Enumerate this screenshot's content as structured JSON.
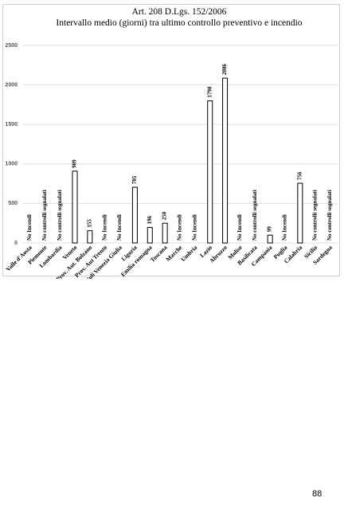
{
  "chart_data": {
    "type": "bar",
    "title": "Art. 208 D.Lgs. 152/2006",
    "subtitle": "Intervallo medio (giorni) tra ultimo controllo preventivo e incendio",
    "categories": [
      "Valle d'Aosta",
      "Piemonte",
      "Lombardia",
      "Veneto",
      "Prov. Aut. Bolzano",
      "Prov. Aut Trento",
      "Friuli Venezia Giulia",
      "Liguria",
      "Emilia romagna",
      "Toscana",
      "Marche",
      "Umbria",
      "Lazio",
      "Abruzzo",
      "Molise",
      "Basilicata",
      "Campania",
      "Puglia",
      "Calabria",
      "Sicilia",
      "Sardegna"
    ],
    "values": [
      null,
      null,
      null,
      909,
      155,
      null,
      null,
      705,
      196,
      250,
      null,
      null,
      1798,
      2086,
      null,
      null,
      99,
      null,
      756,
      null,
      null
    ],
    "value_labels": [
      "No Incendi",
      "No controlli segnalati",
      "No controlli segnalati",
      "909",
      "155",
      "No Incendi",
      "No Incendi",
      "705",
      "196",
      "250",
      "No Incendi",
      "No Incendi",
      "1798",
      "2086",
      "No Incendi",
      "No controlli segnalati",
      "99",
      "No Incendi",
      "756",
      "No controlli segnalati",
      "No controlli segnalati"
    ],
    "color": "#ffffff",
    "ylim": [
      0,
      2500
    ],
    "yticks": [
      0,
      500,
      1000,
      1500,
      2000,
      2500
    ],
    "grid": true
  },
  "page_number": "88"
}
